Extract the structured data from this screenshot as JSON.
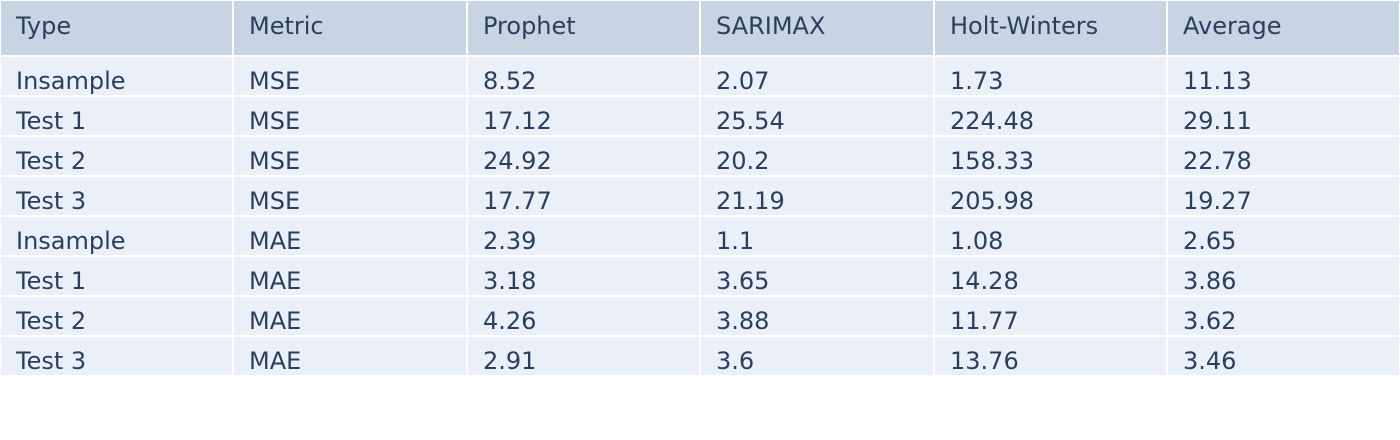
{
  "chart_data": {
    "type": "table",
    "columns": [
      "Type",
      "Metric",
      "Prophet",
      "SARIMAX",
      "Holt-Winters",
      "Average"
    ],
    "rows": [
      [
        "Insample",
        "MSE",
        "8.52",
        "2.07",
        "1.73",
        "11.13"
      ],
      [
        "Test 1",
        "MSE",
        "17.12",
        "25.54",
        "224.48",
        "29.11"
      ],
      [
        "Test 2",
        "MSE",
        "24.92",
        "20.2",
        "158.33",
        "22.78"
      ],
      [
        "Test 3",
        "MSE",
        "17.77",
        "21.19",
        "205.98",
        "19.27"
      ],
      [
        "Insample",
        "MAE",
        "2.39",
        "1.1",
        "1.08",
        "2.65"
      ],
      [
        "Test 1",
        "MAE",
        "3.18",
        "3.65",
        "14.28",
        "3.86"
      ],
      [
        "Test 2",
        "MAE",
        "4.26",
        "3.88",
        "11.77",
        "3.62"
      ],
      [
        "Test 3",
        "MAE",
        "2.91",
        "3.6",
        "13.76",
        "3.46"
      ]
    ],
    "colors": {
      "header_fill": "#c8d4e3",
      "cell_fill": "#ebf0f8",
      "line": "#ffffff",
      "text": "#2a3f5f"
    }
  }
}
